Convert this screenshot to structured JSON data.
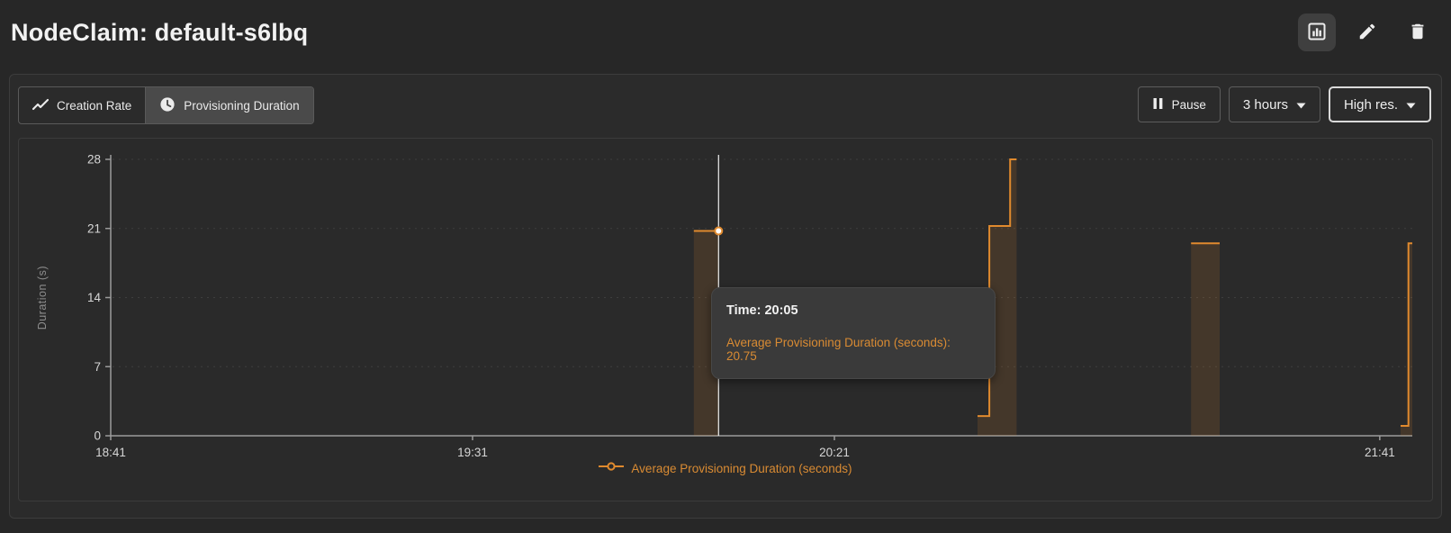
{
  "header": {
    "title": "NodeClaim: default-s6lbq",
    "actions": [
      {
        "icon": "bar-chart-icon",
        "active": true
      },
      {
        "icon": "pencil-icon"
      },
      {
        "icon": "trash-icon"
      }
    ]
  },
  "toolbar": {
    "tabs": [
      {
        "label": "Creation Rate",
        "icon": "trend-line-icon",
        "selected": false
      },
      {
        "label": "Provisioning Duration",
        "icon": "clock-icon",
        "selected": true
      }
    ],
    "pause_label": "Pause",
    "pause_icon": "pause-icon",
    "interval_label": "3 hours",
    "resolution_label": "High res.",
    "dropdown_icon": "chevron-down-icon"
  },
  "colors": {
    "accent_orange": "#e08a2e",
    "orange_text": "#d98b33",
    "page_background": "#272727",
    "panel_background": "#2a2a2a",
    "axis_gray": "#9b9b9b"
  },
  "chart_data": {
    "type": "area",
    "subtype": "step-area-with-gaps",
    "title": "",
    "xlabel": "",
    "ylabel": "Duration (s)",
    "ylim": [
      0,
      28
    ],
    "y_ticks": [
      0,
      7,
      14,
      21,
      28
    ],
    "x_ticks": [
      {
        "label": "18:41",
        "f": 0.0
      },
      {
        "label": "19:31",
        "f": 0.278
      },
      {
        "label": "20:21",
        "f": 0.556
      },
      {
        "label": "21:41",
        "f": 0.975
      }
    ],
    "grid": "horizontal-dashed",
    "legend": "Average Provisioning Duration (seconds)",
    "legend_position": "bottom-center",
    "series": [
      {
        "name": "Average Provisioning Duration (seconds)",
        "color": "#e08a2e",
        "segments": [
          {
            "desc": "flat bar ~20:01-20:05 at 20.75 s",
            "points": [
              {
                "time": "20:01",
                "f": 0.448,
                "v": 20.75
              },
              {
                "time": "20:05",
                "f": 0.467,
                "v": 20.75
              }
            ]
          },
          {
            "desc": "step ~20:41-20:46 rising 2 -> 21.25 -> 28 s",
            "points": [
              {
                "time": "20:41",
                "f": 0.666,
                "v": 2.0
              },
              {
                "time": "20:43",
                "f": 0.675,
                "v": 2.0
              },
              {
                "time": "20:43",
                "f": 0.675,
                "v": 21.25
              },
              {
                "time": "20:45",
                "f": 0.691,
                "v": 21.25
              },
              {
                "time": "20:45",
                "f": 0.691,
                "v": 28
              },
              {
                "time": "20:46",
                "f": 0.696,
                "v": 28
              }
            ]
          },
          {
            "desc": "flat bar ~21:11-21:14 at 19.5 s",
            "points": [
              {
                "time": "21:11",
                "f": 0.83,
                "v": 19.5
              },
              {
                "time": "21:14",
                "f": 0.852,
                "v": 19.5
              }
            ]
          },
          {
            "desc": "right-edge step ~21:39-21:41 rising 1 -> 19.5 s",
            "points": [
              {
                "time": "21:39",
                "f": 0.991,
                "v": 1.0
              },
              {
                "time": "21:41",
                "f": 0.997,
                "v": 1.0
              },
              {
                "time": "21:41",
                "f": 0.997,
                "v": 19.5
              },
              {
                "time": "21:41",
                "f": 1.0,
                "v": 19.5
              }
            ]
          }
        ]
      }
    ],
    "hover_point": {
      "time": "20:05",
      "f": 0.467,
      "v": 20.75
    }
  },
  "tooltip": {
    "time": "Time: 20:05",
    "value": "Average Provisioning Duration (seconds): 20.75"
  }
}
